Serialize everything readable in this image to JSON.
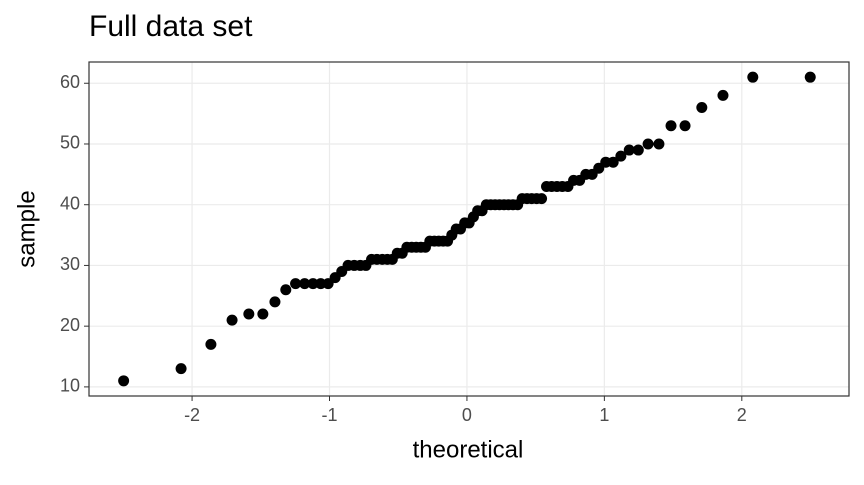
{
  "chart_data": {
    "type": "scatter",
    "title": "Full data set",
    "x_label": "theoretical",
    "y_label": "sample",
    "x": [
      -2.498,
      -2.08,
      -1.863,
      -1.709,
      -1.587,
      -1.485,
      -1.397,
      -1.318,
      -1.247,
      -1.181,
      -1.12,
      -1.064,
      -1.01,
      -0.959,
      -0.911,
      -0.865,
      -0.82,
      -0.776,
      -0.735,
      -0.694,
      -0.655,
      -0.616,
      -0.579,
      -0.543,
      -0.507,
      -0.471,
      -0.437,
      -0.402,
      -0.369,
      -0.335,
      -0.302,
      -0.27,
      -0.237,
      -0.205,
      -0.173,
      -0.141,
      -0.11,
      -0.078,
      -0.047,
      -0.016,
      0.016,
      0.047,
      0.078,
      0.11,
      0.141,
      0.173,
      0.205,
      0.237,
      0.27,
      0.302,
      0.335,
      0.369,
      0.402,
      0.437,
      0.471,
      0.507,
      0.543,
      0.579,
      0.616,
      0.655,
      0.694,
      0.735,
      0.776,
      0.82,
      0.865,
      0.911,
      0.959,
      1.01,
      1.064,
      1.12,
      1.181,
      1.247,
      1.318,
      1.397,
      1.485,
      1.587,
      1.709,
      1.863,
      2.08,
      2.498
    ],
    "values": [
      11,
      13,
      17,
      21,
      22,
      22,
      24,
      26,
      27,
      27,
      27,
      27,
      27,
      28,
      29,
      30,
      30,
      30,
      30,
      31,
      31,
      31,
      31,
      31,
      32,
      32,
      33,
      33,
      33,
      33,
      33,
      34,
      34,
      34,
      34,
      34,
      35,
      36,
      36,
      37,
      37,
      38,
      39,
      39,
      40,
      40,
      40,
      40,
      40,
      40,
      40,
      40,
      41,
      41,
      41,
      41,
      41,
      43,
      43,
      43,
      43,
      43,
      44,
      44,
      45,
      45,
      46,
      47,
      47,
      48,
      49,
      49,
      50,
      50,
      53,
      53,
      56,
      58,
      61,
      61
    ],
    "color": "#000000",
    "xlim": [
      -2.75,
      2.78
    ],
    "xticks": [
      -2,
      -1,
      0,
      1,
      2
    ],
    "ylim": [
      8.5,
      63.5
    ],
    "yticks": [
      10,
      20,
      30,
      40,
      50,
      60
    ],
    "grid": true
  }
}
